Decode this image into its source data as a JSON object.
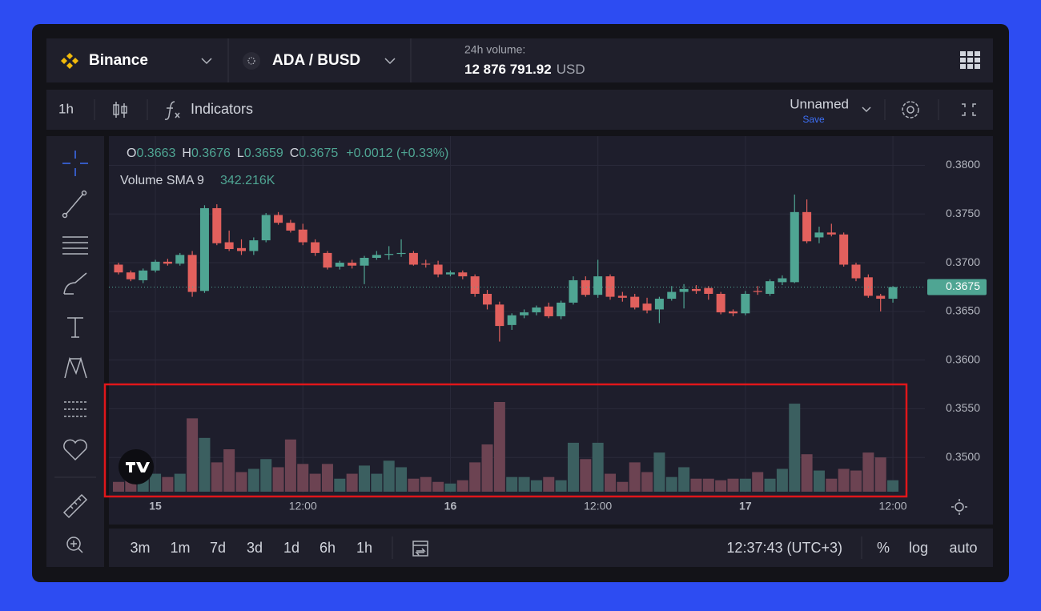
{
  "header": {
    "exchange": "Binance",
    "pair": "ADA / BUSD",
    "volume_label": "24h volume:",
    "volume_value": "12 876 791.92",
    "volume_unit": "USD"
  },
  "toolbar": {
    "interval": "1h",
    "indicators": "Indicators",
    "layout_name": "Unnamed",
    "save": "Save"
  },
  "chart_data": {
    "type": "candlestick",
    "legend": {
      "ohlc": [
        {
          "key": "O",
          "value": "0.3663"
        },
        {
          "key": "H",
          "value": "0.3676"
        },
        {
          "key": "L",
          "value": "0.3659"
        },
        {
          "key": "C",
          "value": "0.3675"
        }
      ],
      "change": "+0.0012 (+0.33%)",
      "volume_indicator": "Volume SMA 9",
      "volume_indicator_value": "342.216K"
    },
    "categories": [
      null,
      null,
      null,
      "15",
      null,
      null,
      null,
      null,
      null,
      null,
      null,
      null,
      null,
      null,
      null,
      "12:00",
      null,
      null,
      null,
      null,
      null,
      null,
      null,
      null,
      null,
      null,
      null,
      "16",
      null,
      null,
      null,
      null,
      null,
      null,
      null,
      null,
      null,
      null,
      null,
      "12:00",
      null,
      null,
      null,
      null,
      null,
      null,
      null,
      null,
      null,
      null,
      null,
      "17",
      null,
      null,
      null,
      null,
      null,
      null,
      null,
      null,
      null,
      null,
      null,
      "12:00"
    ],
    "open": [
      0.3698,
      0.369,
      0.3682,
      0.3692,
      0.3701,
      0.3699,
      0.3708,
      0.3671,
      0.3756,
      0.3721,
      0.3715,
      0.3712,
      0.3723,
      0.3749,
      0.3741,
      0.3734,
      0.3721,
      0.371,
      0.3696,
      0.37,
      0.3697,
      0.3705,
      0.3708,
      0.3709,
      0.371,
      0.3699,
      0.3698,
      0.3688,
      0.369,
      0.3686,
      0.3668,
      0.3657,
      0.3636,
      0.3646,
      0.3649,
      0.3655,
      0.3645,
      0.3659,
      0.3682,
      0.3667,
      0.3686,
      0.3666,
      0.3665,
      0.3658,
      0.3652,
      0.3663,
      0.367,
      0.3673,
      0.3674,
      0.3668,
      0.365,
      0.3648,
      0.3671,
      0.3668,
      0.368,
      0.368,
      0.3752,
      0.3726,
      0.3731,
      0.3729,
      0.3698,
      0.3685,
      0.3666,
      0.3663
    ],
    "high": [
      0.37,
      0.3692,
      0.3694,
      0.3703,
      0.3704,
      0.371,
      0.3712,
      0.3759,
      0.376,
      0.3733,
      0.3724,
      0.3726,
      0.3751,
      0.3752,
      0.3744,
      0.374,
      0.3724,
      0.3712,
      0.3702,
      0.3703,
      0.3707,
      0.3712,
      0.3717,
      0.3724,
      0.3712,
      0.3703,
      0.3702,
      0.3692,
      0.3692,
      0.3688,
      0.3672,
      0.366,
      0.3648,
      0.3652,
      0.3656,
      0.3659,
      0.3661,
      0.3686,
      0.3686,
      0.3703,
      0.3688,
      0.367,
      0.3668,
      0.3664,
      0.3665,
      0.3676,
      0.3678,
      0.3677,
      0.3676,
      0.367,
      0.3652,
      0.3671,
      0.3676,
      0.3683,
      0.3687,
      0.377,
      0.3765,
      0.3737,
      0.374,
      0.3731,
      0.37,
      0.3688,
      0.3668,
      0.3676
    ],
    "low": [
      0.3688,
      0.3681,
      0.3679,
      0.369,
      0.3697,
      0.3697,
      0.3665,
      0.3669,
      0.3718,
      0.3712,
      0.3708,
      0.3708,
      0.3721,
      0.3739,
      0.3731,
      0.3718,
      0.3707,
      0.3693,
      0.3693,
      0.3694,
      0.3678,
      0.3703,
      0.3703,
      0.3706,
      0.3697,
      0.3695,
      0.3685,
      0.3686,
      0.3683,
      0.3665,
      0.3652,
      0.3619,
      0.3631,
      0.3643,
      0.3646,
      0.3643,
      0.3642,
      0.3657,
      0.3665,
      0.3664,
      0.3662,
      0.366,
      0.3652,
      0.3648,
      0.3638,
      0.3661,
      0.3653,
      0.3668,
      0.3662,
      0.3647,
      0.3645,
      0.3646,
      0.3667,
      0.3666,
      0.3677,
      0.3679,
      0.372,
      0.372,
      0.3727,
      0.3696,
      0.3681,
      0.3664,
      0.365,
      0.3659
    ],
    "close": [
      0.369,
      0.3683,
      0.3692,
      0.3701,
      0.3699,
      0.3708,
      0.367,
      0.3756,
      0.372,
      0.3714,
      0.3712,
      0.3723,
      0.3749,
      0.3741,
      0.3733,
      0.3721,
      0.371,
      0.3695,
      0.37,
      0.3697,
      0.3705,
      0.3708,
      0.3709,
      0.371,
      0.3698,
      0.3698,
      0.3688,
      0.369,
      0.3686,
      0.3668,
      0.3657,
      0.3635,
      0.3646,
      0.3649,
      0.3654,
      0.3645,
      0.3659,
      0.3682,
      0.3667,
      0.3686,
      0.3665,
      0.3664,
      0.3654,
      0.3651,
      0.3663,
      0.367,
      0.3673,
      0.3671,
      0.3668,
      0.3649,
      0.3648,
      0.3668,
      0.367,
      0.3681,
      0.3684,
      0.3752,
      0.3722,
      0.3731,
      0.3729,
      0.3698,
      0.3684,
      0.3666,
      0.3663,
      0.3675
    ],
    "volume": [
      137,
      160,
      228,
      251,
      205,
      251,
      1026,
      752,
      410,
      593,
      274,
      319,
      456,
      342,
      730,
      388,
      251,
      388,
      182,
      251,
      365,
      251,
      433,
      342,
      182,
      205,
      137,
      114,
      160,
      410,
      661,
      1254,
      205,
      205,
      160,
      205,
      160,
      684,
      456,
      684,
      251,
      137,
      410,
      274,
      547,
      205,
      342,
      182,
      182,
      160,
      182,
      182,
      274,
      182,
      319,
      1231,
      524,
      296,
      182,
      319,
      296,
      547,
      479,
      160
    ],
    "up_color": "#4fa593",
    "down_color": "#e2605d",
    "up_volume_color": "#3b5f60",
    "down_volume_color": "#6c4352",
    "ylim": [
      0.3464,
      0.383
    ],
    "yticks": [
      {
        "value": 0.35,
        "label": "0.3500"
      },
      {
        "value": 0.355,
        "label": "0.3550"
      },
      {
        "value": 0.36,
        "label": "0.3600"
      },
      {
        "value": 0.365,
        "label": "0.3650"
      },
      {
        "value": 0.37,
        "label": "0.3700"
      },
      {
        "value": 0.375,
        "label": "0.3750"
      },
      {
        "value": 0.38,
        "label": "0.3800"
      }
    ],
    "last_price": {
      "value": 0.3675,
      "label": "0.3675"
    },
    "grid": true
  },
  "bottom_bar": {
    "ranges": [
      "3m",
      "1m",
      "7d",
      "3d",
      "1d",
      "6h",
      "1h"
    ],
    "clock": "12:37:43 (UTC+3)",
    "percent": "%",
    "log": "log",
    "auto": "auto"
  }
}
